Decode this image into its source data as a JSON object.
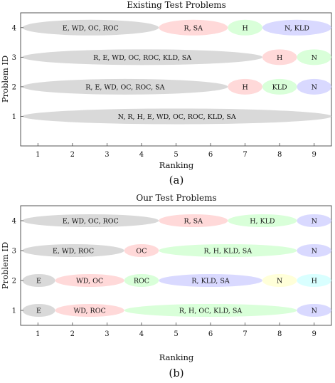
{
  "chart_data": [
    {
      "type": "bubble-ranking",
      "panel_label": "(a)",
      "title": "Existing Test Problems",
      "xlabel": "Ranking",
      "ylabel": "Problem ID",
      "xlim": [
        0.5,
        9.5
      ],
      "ylim": [
        0,
        4.5
      ],
      "xticks": [
        "1",
        "2",
        "3",
        "4",
        "5",
        "6",
        "7",
        "8",
        "9"
      ],
      "yticks": [
        "1",
        "2",
        "3",
        "4"
      ],
      "groups": [
        {
          "problem": 4,
          "start": 0.55,
          "end": 4.5,
          "label": "E, WD, OC, ROC",
          "color": "#d9d9d9"
        },
        {
          "problem": 4,
          "start": 4.5,
          "end": 6.5,
          "label": "R, SA",
          "color": "#ffd9d9"
        },
        {
          "problem": 4,
          "start": 6.5,
          "end": 7.5,
          "label": "H",
          "color": "#d9ffd9"
        },
        {
          "problem": 4,
          "start": 7.5,
          "end": 9.5,
          "label": "N, KLD",
          "color": "#d9d9ff"
        },
        {
          "problem": 3,
          "start": 0.55,
          "end": 7.5,
          "label": "R, E, WD, OC, ROC, KLD, SA",
          "color": "#d9d9d9"
        },
        {
          "problem": 3,
          "start": 7.5,
          "end": 8.5,
          "label": "H",
          "color": "#ffd9d9"
        },
        {
          "problem": 3,
          "start": 8.5,
          "end": 9.5,
          "label": "N",
          "color": "#d9ffd9"
        },
        {
          "problem": 2,
          "start": 0.55,
          "end": 6.5,
          "label": "R, E, WD, OC, ROC, SA",
          "color": "#d9d9d9"
        },
        {
          "problem": 2,
          "start": 6.5,
          "end": 7.5,
          "label": "H",
          "color": "#ffd9d9"
        },
        {
          "problem": 2,
          "start": 7.5,
          "end": 8.5,
          "label": "KLD",
          "color": "#d9ffd9"
        },
        {
          "problem": 2,
          "start": 8.5,
          "end": 9.5,
          "label": "N",
          "color": "#d9d9ff"
        },
        {
          "problem": 1,
          "start": 0.55,
          "end": 9.5,
          "label": "N, R, H, E, WD, OC, ROC, KLD, SA",
          "color": "#d9d9d9"
        }
      ]
    },
    {
      "type": "bubble-ranking",
      "panel_label": "(b)",
      "title": "Our Test Problems",
      "xlabel": "Ranking",
      "ylabel": "Problem ID",
      "xlim": [
        0.5,
        9.5
      ],
      "ylim": [
        0.5,
        4.5
      ],
      "xticks": [
        "1",
        "2",
        "3",
        "4",
        "5",
        "6",
        "7",
        "8",
        "9"
      ],
      "yticks": [
        "1",
        "2",
        "3",
        "4"
      ],
      "groups": [
        {
          "problem": 4,
          "start": 0.55,
          "end": 4.5,
          "label": "E, WD, OC, ROC",
          "color": "#d9d9d9"
        },
        {
          "problem": 4,
          "start": 4.5,
          "end": 6.5,
          "label": "R, SA",
          "color": "#ffd9d9"
        },
        {
          "problem": 4,
          "start": 6.5,
          "end": 8.5,
          "label": "H, KLD",
          "color": "#d9ffd9"
        },
        {
          "problem": 4,
          "start": 8.5,
          "end": 9.5,
          "label": "N",
          "color": "#d9d9ff"
        },
        {
          "problem": 3,
          "start": 0.55,
          "end": 3.5,
          "label": "E, WD, ROC",
          "color": "#d9d9d9"
        },
        {
          "problem": 3,
          "start": 3.5,
          "end": 4.5,
          "label": "OC",
          "color": "#ffd9d9"
        },
        {
          "problem": 3,
          "start": 4.5,
          "end": 8.5,
          "label": "R, H, KLD, SA",
          "color": "#d9ffd9"
        },
        {
          "problem": 3,
          "start": 8.5,
          "end": 9.5,
          "label": "N",
          "color": "#d9d9ff"
        },
        {
          "problem": 2,
          "start": 0.55,
          "end": 1.5,
          "label": "E",
          "color": "#d9d9d9"
        },
        {
          "problem": 2,
          "start": 1.5,
          "end": 3.5,
          "label": "WD, OC",
          "color": "#ffd9d9"
        },
        {
          "problem": 2,
          "start": 3.5,
          "end": 4.5,
          "label": "ROC",
          "color": "#d9ffd9"
        },
        {
          "problem": 2,
          "start": 4.5,
          "end": 7.5,
          "label": "R, KLD, SA",
          "color": "#d9d9ff"
        },
        {
          "problem": 2,
          "start": 7.5,
          "end": 8.5,
          "label": "N",
          "color": "#ffffd9"
        },
        {
          "problem": 2,
          "start": 8.5,
          "end": 9.5,
          "label": "H",
          "color": "#d9ffff"
        },
        {
          "problem": 1,
          "start": 0.55,
          "end": 1.5,
          "label": "E",
          "color": "#d9d9d9"
        },
        {
          "problem": 1,
          "start": 1.5,
          "end": 3.5,
          "label": "WD, ROC",
          "color": "#ffd9d9"
        },
        {
          "problem": 1,
          "start": 3.5,
          "end": 8.5,
          "label": "R, H, OC, KLD, SA",
          "color": "#d9ffd9"
        },
        {
          "problem": 1,
          "start": 8.5,
          "end": 9.5,
          "label": "N",
          "color": "#d9d9ff"
        }
      ]
    }
  ]
}
